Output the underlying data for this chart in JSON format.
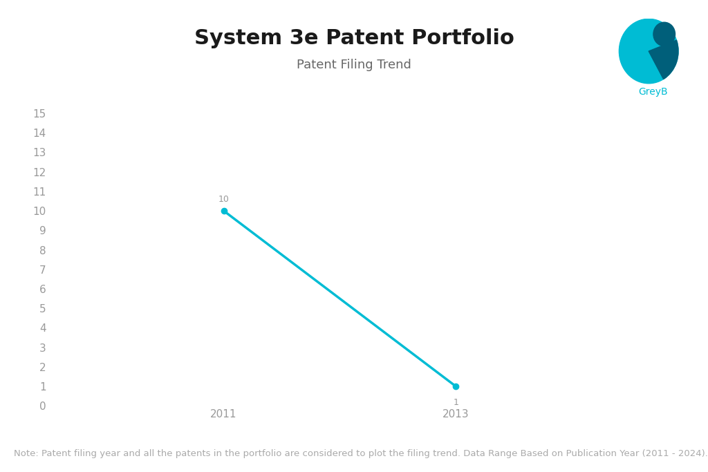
{
  "title": "System 3e Patent Portfolio",
  "subtitle": "Patent Filing Trend",
  "x_values": [
    2011,
    2013
  ],
  "y_values": [
    10,
    1
  ],
  "line_color": "#00BCD4",
  "marker_color": "#00BCD4",
  "ylim": [
    0,
    15
  ],
  "yticks": [
    0,
    1,
    2,
    3,
    4,
    5,
    6,
    7,
    8,
    9,
    10,
    11,
    12,
    13,
    14,
    15
  ],
  "xticks": [
    2011,
    2013
  ],
  "background_color": "#ffffff",
  "title_fontsize": 22,
  "subtitle_fontsize": 13,
  "tick_fontsize": 11,
  "note_text": "Note: Patent filing year and all the patents in the portfolio are considered to plot the filing trend. Data Range Based on Publication Year (2011 - 2024).",
  "note_fontsize": 9.5,
  "label_fontsize": 9,
  "title_color": "#1a1a1a",
  "subtitle_color": "#666666",
  "tick_color": "#999999",
  "note_color": "#aaaaaa",
  "greyb_color": "#00BCD4",
  "greyb_dark": "#006080"
}
